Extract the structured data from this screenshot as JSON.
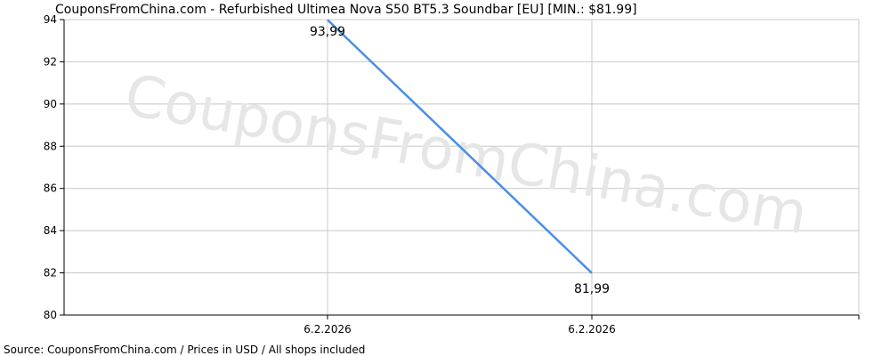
{
  "chart_data": {
    "type": "line",
    "title": "CouponsFromChina.com - Refurbished Ultimea Nova S50 BT5.3 Soundbar [EU] [MIN.: $81.99]",
    "footer": "Source: CouponsFromChina.com / Prices in USD / All shops included",
    "watermark": "CouponsFromChina.com",
    "xlabel": "",
    "ylabel": "",
    "categories": [
      "6.2.2026",
      "6.2.2026"
    ],
    "series": [
      {
        "values": [
          93.99,
          81.99
        ],
        "labels": [
          "93,99",
          "81,99"
        ],
        "color": "#4a8ee6"
      }
    ],
    "ylim": [
      80,
      94
    ],
    "yticks": [
      "80",
      "82",
      "84",
      "86",
      "88",
      "90",
      "92",
      "94"
    ],
    "grid": true
  }
}
